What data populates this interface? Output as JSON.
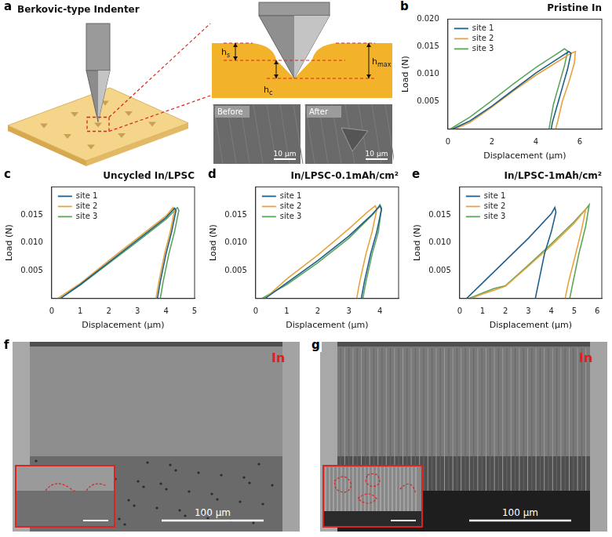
{
  "chart_data": [
    {
      "panel": "b",
      "type": "line",
      "title": "Pristine In",
      "x_label": "Displacement (μm)",
      "y_label": "Load (N)",
      "xlim": [
        0,
        7
      ],
      "xticks": [
        0,
        2,
        4,
        6
      ],
      "ylim": [
        0,
        0.02
      ],
      "yticks": [
        0.005,
        {
          "value": 0.01,
          "label": "0.010"
        },
        0.015,
        {
          "value": 0.02,
          "label": "0.020"
        }
      ],
      "grid": false,
      "legend": "upper left",
      "series": [
        {
          "name": "site 1",
          "color": "#1f5f8b",
          "x": [
            0.2,
            1,
            2,
            3,
            4,
            5,
            5.5,
            5.6,
            5.45,
            5.2,
            4.95,
            4.75,
            4.7
          ],
          "values": [
            0,
            0.0015,
            0.0042,
            0.0072,
            0.0102,
            0.0128,
            0.0141,
            0.0138,
            0.011,
            0.0075,
            0.004,
            0.0012,
            0
          ]
        },
        {
          "name": "site 2",
          "color": "#e8a33c",
          "x": [
            0.3,
            1,
            2,
            3,
            4,
            5,
            5.6,
            5.8,
            5.75,
            5.5,
            5.2,
            5.0,
            4.9
          ],
          "values": [
            0,
            0.0012,
            0.004,
            0.007,
            0.0098,
            0.0123,
            0.0138,
            0.0141,
            0.012,
            0.0085,
            0.005,
            0.0015,
            0
          ]
        },
        {
          "name": "site 3",
          "color": "#5ba55b",
          "x": [
            0.1,
            1,
            2,
            3,
            4,
            5,
            5.3,
            5.45,
            5.3,
            5.05,
            4.8,
            4.65,
            4.6
          ],
          "values": [
            0,
            0.0022,
            0.0052,
            0.0083,
            0.0112,
            0.0138,
            0.0146,
            0.0142,
            0.0115,
            0.008,
            0.0045,
            0.0012,
            0
          ]
        }
      ]
    },
    {
      "panel": "c",
      "type": "line",
      "title": "Uncycled In/LPSC",
      "x_label": "Displacement (μm)",
      "y_label": "Load (N)",
      "xlim": [
        0,
        5
      ],
      "xticks": [
        0,
        1,
        2,
        3,
        4,
        5
      ],
      "ylim": [
        0,
        0.02
      ],
      "yticks": [
        0.005,
        {
          "value": 0.01,
          "label": "0.010"
        },
        0.015
      ],
      "grid": false,
      "legend": "upper left",
      "series": [
        {
          "name": "site 1",
          "color": "#1f5f8b",
          "x": [
            0.3,
            1,
            2,
            3,
            4,
            4.3,
            4.35,
            4.2,
            4.0,
            3.8,
            3.7
          ],
          "values": [
            0,
            0.0025,
            0.0065,
            0.0105,
            0.0145,
            0.0162,
            0.0158,
            0.012,
            0.008,
            0.003,
            0
          ]
        },
        {
          "name": "site 2",
          "color": "#e8a33c",
          "x": [
            0.2,
            1,
            2,
            3,
            4,
            4.25,
            4.3,
            4.15,
            3.95,
            3.75,
            3.65
          ],
          "values": [
            0,
            0.0027,
            0.0068,
            0.0108,
            0.0148,
            0.0163,
            0.0158,
            0.012,
            0.008,
            0.003,
            0
          ]
        },
        {
          "name": "site 3",
          "color": "#5ba55b",
          "x": [
            0.3,
            1,
            2,
            3,
            4,
            4.4,
            4.45,
            4.3,
            4.1,
            3.9,
            3.8
          ],
          "values": [
            0,
            0.0024,
            0.0063,
            0.0102,
            0.0142,
            0.0163,
            0.0158,
            0.012,
            0.008,
            0.003,
            0
          ]
        }
      ]
    },
    {
      "panel": "d",
      "type": "line",
      "title": "In/LPSC-0.1mAh/cm²",
      "x_label": "Displacement (μm)",
      "y_label": "Load (N)",
      "xlim": [
        0,
        4.6
      ],
      "xticks": [
        0,
        1,
        2,
        3,
        4
      ],
      "ylim": [
        0,
        0.02
      ],
      "yticks": [
        0.005,
        {
          "value": 0.01,
          "label": "0.010"
        },
        0.015
      ],
      "grid": false,
      "legend": "upper left",
      "series": [
        {
          "name": "site 1",
          "color": "#1f5f8b",
          "x": [
            0.3,
            1,
            2,
            3,
            3.7,
            4.0,
            4.05,
            3.9,
            3.7,
            3.5,
            3.4
          ],
          "values": [
            0,
            0.0028,
            0.0068,
            0.0112,
            0.0148,
            0.0166,
            0.016,
            0.012,
            0.008,
            0.003,
            0
          ]
        },
        {
          "name": "site 2",
          "color": "#e8a33c",
          "x": [
            0.3,
            1,
            2,
            3,
            3.6,
            3.85,
            3.9,
            3.75,
            3.55,
            3.35,
            3.25
          ],
          "values": [
            0,
            0.0035,
            0.0078,
            0.0125,
            0.0155,
            0.0166,
            0.016,
            0.012,
            0.008,
            0.003,
            0
          ]
        },
        {
          "name": "site 3",
          "color": "#5ba55b",
          "x": [
            0.2,
            1,
            2,
            3,
            3.8,
            4.0,
            4.05,
            3.95,
            3.75,
            3.55,
            3.45
          ],
          "values": [
            0,
            0.0025,
            0.0064,
            0.0108,
            0.0152,
            0.0168,
            0.0162,
            0.012,
            0.008,
            0.003,
            0
          ]
        }
      ]
    },
    {
      "panel": "e",
      "type": "line",
      "title": "In/LPSC-1mAh/cm²",
      "x_label": "Displacement (μm)",
      "y_label": "Load (N)",
      "xlim": [
        0,
        6.2
      ],
      "xticks": [
        0,
        1,
        2,
        3,
        4,
        5,
        6
      ],
      "ylim": [
        0,
        0.02
      ],
      "yticks": [
        0.005,
        {
          "value": 0.01,
          "label": "0.010"
        },
        0.015
      ],
      "grid": false,
      "legend": "upper left",
      "series": [
        {
          "name": "site 1",
          "color": "#1f5f8b",
          "x": [
            0.3,
            1,
            2,
            3,
            4,
            4.15,
            4.2,
            4.0,
            3.7,
            3.45,
            3.3
          ],
          "values": [
            0,
            0.0028,
            0.0068,
            0.0108,
            0.0152,
            0.0163,
            0.0155,
            0.012,
            0.008,
            0.003,
            0
          ]
        },
        {
          "name": "site 2",
          "color": "#e8a33c",
          "x": [
            0.5,
            1,
            1.5,
            2,
            3,
            4,
            5,
            5.4,
            5.5,
            5.3,
            5.0,
            4.75,
            4.6
          ],
          "values": [
            0,
            0.0008,
            0.0015,
            0.0022,
            0.0058,
            0.0095,
            0.0135,
            0.0155,
            0.016,
            0.012,
            0.007,
            0.003,
            0
          ]
        },
        {
          "name": "site 3",
          "color": "#5ba55b",
          "x": [
            0.4,
            1,
            1.5,
            2,
            3,
            4,
            5,
            5.5,
            5.65,
            5.5,
            5.2,
            4.95,
            4.8
          ],
          "values": [
            0,
            0.001,
            0.0018,
            0.0023,
            0.006,
            0.0098,
            0.0138,
            0.016,
            0.0168,
            0.013,
            0.008,
            0.003,
            0
          ]
        }
      ]
    }
  ],
  "figure": {
    "a": {
      "panel": "a",
      "title": "Berkovic-type Indenter",
      "depth_labels": [
        {
          "text": "h",
          "subscript": "s"
        },
        {
          "text": "h",
          "subscript": "c"
        },
        {
          "text": "h",
          "subscript": "max"
        }
      ],
      "images": [
        {
          "label": "Before",
          "scale_bar": "10 μm"
        },
        {
          "label": "After",
          "scale_bar": "10 μm"
        }
      ]
    },
    "f": {
      "panel": "f",
      "label": "In",
      "scale_bar": "100 μm"
    },
    "g": {
      "panel": "g",
      "label": "In",
      "scale_bar": "100 μm"
    }
  }
}
